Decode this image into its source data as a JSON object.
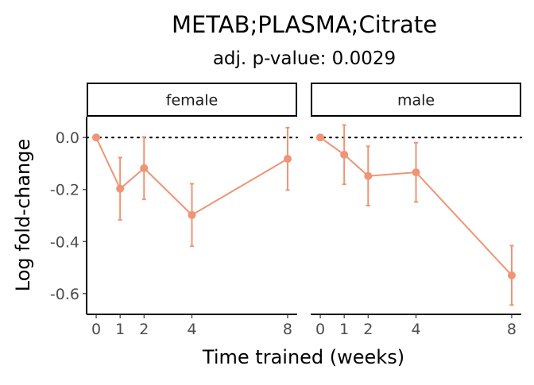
{
  "chart_data": {
    "type": "line",
    "title": "METAB;PLASMA;Citrate",
    "subtitle": "adj. p-value: 0.0029",
    "xlabel": "Time trained (weeks)",
    "ylabel": "Log fold-change",
    "x_ticks": [
      0,
      1,
      2,
      4,
      8
    ],
    "y_ticks": [
      0.0,
      -0.2,
      -0.4,
      -0.6
    ],
    "y_tick_labels": [
      "0.0",
      "-0.2",
      "-0.4",
      "-0.6"
    ],
    "ylim": [
      -0.68,
      0.08
    ],
    "xlim": [
      -0.4,
      8.4
    ],
    "reference_line": {
      "y": 0,
      "style": "dotted"
    },
    "grid": false,
    "series_color": "#ef9475",
    "panels": [
      {
        "label": "female",
        "points": [
          {
            "x": 0,
            "y": 0.0,
            "lower": 0.0,
            "upper": 0.0
          },
          {
            "x": 1,
            "y": -0.197,
            "lower": -0.317,
            "upper": -0.077
          },
          {
            "x": 2,
            "y": -0.118,
            "lower": -0.238,
            "upper": 0.002
          },
          {
            "x": 4,
            "y": -0.298,
            "lower": -0.418,
            "upper": -0.178
          },
          {
            "x": 8,
            "y": -0.082,
            "lower": -0.202,
            "upper": 0.038
          }
        ]
      },
      {
        "label": "male",
        "points": [
          {
            "x": 0,
            "y": 0.0,
            "lower": 0.0,
            "upper": 0.0
          },
          {
            "x": 1,
            "y": -0.066,
            "lower": -0.18,
            "upper": 0.048
          },
          {
            "x": 2,
            "y": -0.148,
            "lower": -0.262,
            "upper": -0.034
          },
          {
            "x": 4,
            "y": -0.134,
            "lower": -0.248,
            "upper": -0.02
          },
          {
            "x": 8,
            "y": -0.53,
            "lower": -0.644,
            "upper": -0.416
          }
        ]
      }
    ]
  }
}
